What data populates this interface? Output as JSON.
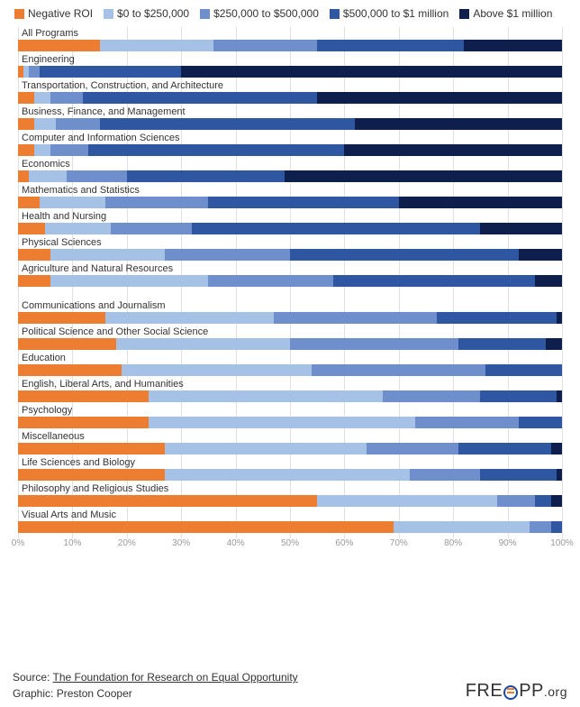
{
  "colors": {
    "negative": "#ed7d31",
    "r0_250": "#a6c1e6",
    "r250_500": "#6e8fcb",
    "r500_1m": "#2f56a0",
    "above1m": "#0f1f4d",
    "grid": "#e0e0e0",
    "text": "#333333"
  },
  "legend": [
    {
      "label": "Negative ROI",
      "colorKey": "negative"
    },
    {
      "label": "$0 to $250,000",
      "colorKey": "r0_250"
    },
    {
      "label": "$250,000 to $500,000",
      "colorKey": "r250_500"
    },
    {
      "label": "$500,000 to $1 million",
      "colorKey": "r500_1m"
    },
    {
      "label": "Above $1 million",
      "colorKey": "above1m"
    }
  ],
  "xticks": [
    0,
    10,
    20,
    30,
    40,
    50,
    60,
    70,
    80,
    90,
    100
  ],
  "groups": [
    {
      "rows": [
        {
          "label": "All Programs",
          "segments": [
            {
              "colorKey": "negative",
              "value": 15
            },
            {
              "colorKey": "r0_250",
              "value": 21
            },
            {
              "colorKey": "r250_500",
              "value": 19
            },
            {
              "colorKey": "r500_1m",
              "value": 27
            },
            {
              "colorKey": "above1m",
              "value": 18
            }
          ]
        },
        {
          "label": "Engineering",
          "segments": [
            {
              "colorKey": "negative",
              "value": 1
            },
            {
              "colorKey": "r0_250",
              "value": 1
            },
            {
              "colorKey": "r250_500",
              "value": 2
            },
            {
              "colorKey": "r500_1m",
              "value": 26
            },
            {
              "colorKey": "above1m",
              "value": 70
            }
          ]
        },
        {
          "label": "Transportation, Construction, and Architecture",
          "segments": [
            {
              "colorKey": "negative",
              "value": 3
            },
            {
              "colorKey": "r0_250",
              "value": 3
            },
            {
              "colorKey": "r250_500",
              "value": 6
            },
            {
              "colorKey": "r500_1m",
              "value": 43
            },
            {
              "colorKey": "above1m",
              "value": 45
            }
          ]
        },
        {
          "label": "Business, Finance, and Management",
          "segments": [
            {
              "colorKey": "negative",
              "value": 3
            },
            {
              "colorKey": "r0_250",
              "value": 4
            },
            {
              "colorKey": "r250_500",
              "value": 8
            },
            {
              "colorKey": "r500_1m",
              "value": 47
            },
            {
              "colorKey": "above1m",
              "value": 38
            }
          ]
        },
        {
          "label": "Computer and Information Sciences",
          "segments": [
            {
              "colorKey": "negative",
              "value": 3
            },
            {
              "colorKey": "r0_250",
              "value": 3
            },
            {
              "colorKey": "r250_500",
              "value": 7
            },
            {
              "colorKey": "r500_1m",
              "value": 47
            },
            {
              "colorKey": "above1m",
              "value": 40
            }
          ]
        },
        {
          "label": "Economics",
          "segments": [
            {
              "colorKey": "negative",
              "value": 2
            },
            {
              "colorKey": "r0_250",
              "value": 7
            },
            {
              "colorKey": "r250_500",
              "value": 11
            },
            {
              "colorKey": "r500_1m",
              "value": 29
            },
            {
              "colorKey": "above1m",
              "value": 51
            }
          ]
        },
        {
          "label": "Mathematics and Statistics",
          "segments": [
            {
              "colorKey": "negative",
              "value": 4
            },
            {
              "colorKey": "r0_250",
              "value": 12
            },
            {
              "colorKey": "r250_500",
              "value": 19
            },
            {
              "colorKey": "r500_1m",
              "value": 35
            },
            {
              "colorKey": "above1m",
              "value": 30
            }
          ]
        },
        {
          "label": "Health and Nursing",
          "segments": [
            {
              "colorKey": "negative",
              "value": 5
            },
            {
              "colorKey": "r0_250",
              "value": 12
            },
            {
              "colorKey": "r250_500",
              "value": 15
            },
            {
              "colorKey": "r500_1m",
              "value": 53
            },
            {
              "colorKey": "above1m",
              "value": 15
            }
          ]
        },
        {
          "label": "Physical Sciences",
          "segments": [
            {
              "colorKey": "negative",
              "value": 6
            },
            {
              "colorKey": "r0_250",
              "value": 21
            },
            {
              "colorKey": "r250_500",
              "value": 23
            },
            {
              "colorKey": "r500_1m",
              "value": 42
            },
            {
              "colorKey": "above1m",
              "value": 8
            }
          ]
        },
        {
          "label": "Agriculture and Natural Resources",
          "segments": [
            {
              "colorKey": "negative",
              "value": 6
            },
            {
              "colorKey": "r0_250",
              "value": 29
            },
            {
              "colorKey": "r250_500",
              "value": 23
            },
            {
              "colorKey": "r500_1m",
              "value": 37
            },
            {
              "colorKey": "above1m",
              "value": 5
            }
          ]
        }
      ]
    },
    {
      "rows": [
        {
          "label": "Communications and Journalism",
          "segments": [
            {
              "colorKey": "negative",
              "value": 16
            },
            {
              "colorKey": "r0_250",
              "value": 31
            },
            {
              "colorKey": "r250_500",
              "value": 30
            },
            {
              "colorKey": "r500_1m",
              "value": 22
            },
            {
              "colorKey": "above1m",
              "value": 1
            }
          ]
        },
        {
          "label": "Political Science and Other Social Science",
          "segments": [
            {
              "colorKey": "negative",
              "value": 18
            },
            {
              "colorKey": "r0_250",
              "value": 32
            },
            {
              "colorKey": "r250_500",
              "value": 31
            },
            {
              "colorKey": "r500_1m",
              "value": 16
            },
            {
              "colorKey": "above1m",
              "value": 3
            }
          ]
        },
        {
          "label": "Education",
          "segments": [
            {
              "colorKey": "negative",
              "value": 19
            },
            {
              "colorKey": "r0_250",
              "value": 35
            },
            {
              "colorKey": "r250_500",
              "value": 32
            },
            {
              "colorKey": "r500_1m",
              "value": 14
            },
            {
              "colorKey": "above1m",
              "value": 0
            }
          ]
        },
        {
          "label": "English, Liberal Arts, and Humanities",
          "segments": [
            {
              "colorKey": "negative",
              "value": 24
            },
            {
              "colorKey": "r0_250",
              "value": 43
            },
            {
              "colorKey": "r250_500",
              "value": 18
            },
            {
              "colorKey": "r500_1m",
              "value": 14
            },
            {
              "colorKey": "above1m",
              "value": 1
            }
          ]
        },
        {
          "label": "Psychology",
          "segments": [
            {
              "colorKey": "negative",
              "value": 24
            },
            {
              "colorKey": "r0_250",
              "value": 49
            },
            {
              "colorKey": "r250_500",
              "value": 19
            },
            {
              "colorKey": "r500_1m",
              "value": 8
            },
            {
              "colorKey": "above1m",
              "value": 0
            }
          ]
        },
        {
          "label": "Miscellaneous",
          "segments": [
            {
              "colorKey": "negative",
              "value": 27
            },
            {
              "colorKey": "r0_250",
              "value": 37
            },
            {
              "colorKey": "r250_500",
              "value": 17
            },
            {
              "colorKey": "r500_1m",
              "value": 17
            },
            {
              "colorKey": "above1m",
              "value": 2
            }
          ]
        },
        {
          "label": "Life Sciences and Biology",
          "segments": [
            {
              "colorKey": "negative",
              "value": 27
            },
            {
              "colorKey": "r0_250",
              "value": 45
            },
            {
              "colorKey": "r250_500",
              "value": 13
            },
            {
              "colorKey": "r500_1m",
              "value": 14
            },
            {
              "colorKey": "above1m",
              "value": 1
            }
          ]
        },
        {
          "label": "Philosophy and Religious Studies",
          "segments": [
            {
              "colorKey": "negative",
              "value": 55
            },
            {
              "colorKey": "r0_250",
              "value": 33
            },
            {
              "colorKey": "r250_500",
              "value": 7
            },
            {
              "colorKey": "r500_1m",
              "value": 3
            },
            {
              "colorKey": "above1m",
              "value": 2
            }
          ]
        },
        {
          "label": "Visual Arts and Music",
          "segments": [
            {
              "colorKey": "negative",
              "value": 69
            },
            {
              "colorKey": "r0_250",
              "value": 25
            },
            {
              "colorKey": "r250_500",
              "value": 4
            },
            {
              "colorKey": "r500_1m",
              "value": 2
            },
            {
              "colorKey": "above1m",
              "value": 0
            }
          ]
        }
      ]
    }
  ],
  "footer": {
    "source_prefix": "Source: ",
    "source_link": "The Foundation for Research on Equal Opportunity",
    "credit_prefix": "Graphic: ",
    "credit_name": "Preston Cooper",
    "logo_pre": "FRE",
    "logo_post": "PP",
    "logo_suffix": ".org"
  }
}
